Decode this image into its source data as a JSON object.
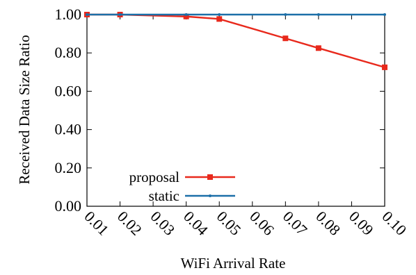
{
  "chart_data": {
    "type": "line",
    "xlabel": "WiFi Arrival Rate",
    "ylabel": "Received Data Size Ratio",
    "x": [
      0.01,
      0.02,
      0.04,
      0.05,
      0.07,
      0.08,
      0.1
    ],
    "x_ticks": [
      "0.01",
      "0.02",
      "0.03",
      "0.04",
      "0.05",
      "0.06",
      "0.07",
      "0.08",
      "0.09",
      "0.10"
    ],
    "y_ticks": [
      "0.00",
      "0.20",
      "0.40",
      "0.60",
      "0.80",
      "1.00"
    ],
    "xlim": [
      0.01,
      0.1
    ],
    "ylim": [
      0.0,
      1.0
    ],
    "grid": false,
    "legend_position": "bottom-left",
    "series": [
      {
        "name": "proposal",
        "color": "#e8291c",
        "marker": "square",
        "x": [
          0.01,
          0.02,
          0.04,
          0.05,
          0.07,
          0.08,
          0.1
        ],
        "values": [
          1.0,
          1.0,
          0.99,
          0.977,
          0.876,
          0.825,
          0.725
        ]
      },
      {
        "name": "static",
        "color": "#1b6fa8",
        "marker": "dot",
        "x": [
          0.01,
          0.02,
          0.04,
          0.05,
          0.07,
          0.08,
          0.1
        ],
        "values": [
          1.0,
          1.0,
          1.0,
          1.0,
          1.0,
          1.0,
          1.0
        ]
      }
    ]
  }
}
